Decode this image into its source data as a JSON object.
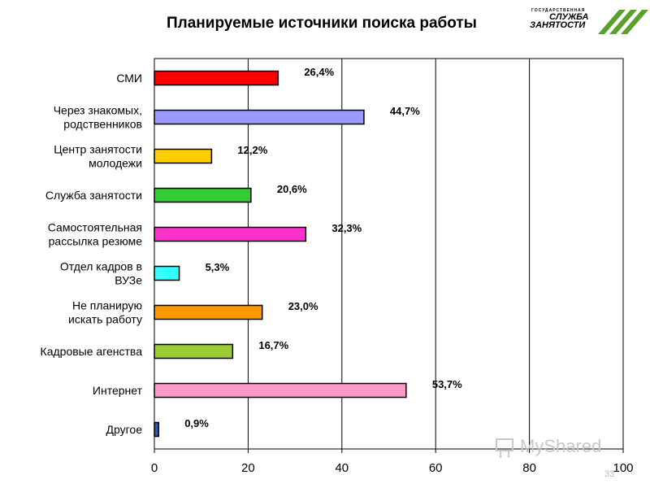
{
  "title": "Планируемые источники поиска работы",
  "logo": {
    "top_text": "ГОСУДАРСТВЕННАЯ",
    "line1": "СЛУЖБА",
    "line2": "ЗАНЯТОСТИ",
    "accent_color": "#5aa02c"
  },
  "watermark": "MyShared",
  "page_number": "33",
  "chart_data": {
    "type": "bar",
    "orientation": "horizontal",
    "categories": [
      [
        "СМИ"
      ],
      [
        "Через знакомых,",
        "родственников"
      ],
      [
        "Центр занятости",
        "молодежи"
      ],
      [
        "Служба занятости"
      ],
      [
        "Самостоятельная",
        "рассылка резюме"
      ],
      [
        "Отдел кадров в",
        "ВУЗе"
      ],
      [
        "Не планирую",
        "искать работу"
      ],
      [
        "Кадровые агенства"
      ],
      [
        "Интернет"
      ],
      [
        "Другое"
      ]
    ],
    "values": [
      26.4,
      44.7,
      12.2,
      20.6,
      32.3,
      5.3,
      23.0,
      16.7,
      53.7,
      0.9
    ],
    "value_labels": [
      "26,4%",
      "44,7%",
      "12,2%",
      "20,6%",
      "32,3%",
      "5,3%",
      "23,0%",
      "16,7%",
      "53,7%",
      "0,9%"
    ],
    "colors": [
      "#ff0000",
      "#9999ff",
      "#ffcc00",
      "#33cc33",
      "#ff33cc",
      "#33ffff",
      "#ff9900",
      "#99cc33",
      "#ff99cc",
      "#3355cc"
    ],
    "xlim": [
      0,
      100
    ],
    "x_ticks": [
      "0",
      "20",
      "40",
      "60",
      "80",
      "100"
    ],
    "grid": true,
    "legend": "none"
  }
}
